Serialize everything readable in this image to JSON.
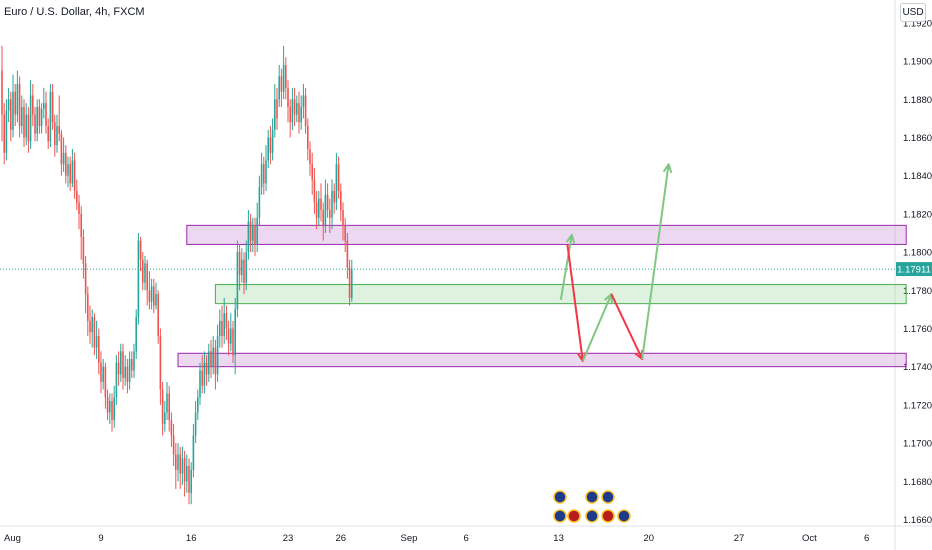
{
  "header": {
    "title": "Euro / U.S. Dollar, 4h, FXCM",
    "currency": "USD"
  },
  "chart_data": {
    "type": "candlestick",
    "title": "Euro / U.S. Dollar, 4h, FXCM",
    "instrument": "Euro / U.S. Dollar",
    "timeframe": "4h",
    "source": "FXCM",
    "currency": "USD",
    "ylim": [
      1.1644,
      1.1932
    ],
    "y_ticks": [
      "1.19200",
      "1.19000",
      "1.18800",
      "1.18600",
      "1.18400",
      "1.18200",
      "1.18000",
      "1.17800",
      "1.17600",
      "1.17400",
      "1.17200",
      "1.17000",
      "1.16800",
      "1.16600"
    ],
    "x_ticks": [
      {
        "label": "Aug",
        "pos": 0
      },
      {
        "label": "9",
        "pos": 45
      },
      {
        "label": "16",
        "pos": 86
      },
      {
        "label": "23",
        "pos": 130
      },
      {
        "label": "26",
        "pos": 154
      },
      {
        "label": "Sep",
        "pos": 185
      },
      {
        "label": "6",
        "pos": 211
      },
      {
        "label": "13",
        "pos": 253
      },
      {
        "label": "20",
        "pos": 294
      },
      {
        "label": "27",
        "pos": 335
      },
      {
        "label": "Oct",
        "pos": 367
      },
      {
        "label": "6",
        "pos": 393
      }
    ],
    "last_price": "1.17911",
    "colors": {
      "up": "#26a69a",
      "down": "#ef5350",
      "zone_purple": "#9c27b0",
      "zone_green": "#4caf50",
      "arrow_red": "#f23645",
      "arrow_green": "#81c784"
    },
    "zones": [
      {
        "type": "resistance",
        "color": "purple",
        "x_from": 84,
        "x_to": 411,
        "y_from": 1.1804,
        "y_to": 1.1814
      },
      {
        "type": "support",
        "color": "green",
        "x_from": 97,
        "x_to": 411,
        "y_from": 1.1773,
        "y_to": 1.1783
      },
      {
        "type": "support",
        "color": "purple",
        "x_from": 80,
        "x_to": 411,
        "y_from": 1.174,
        "y_to": 1.1747
      }
    ],
    "projection_red": [
      [
        257,
        1.1804
      ],
      [
        264,
        1.1743
      ],
      [
        291,
        1.1744
      ]
    ],
    "projection_green": [
      [
        254,
        1.1775
      ],
      [
        259,
        1.1809
      ]
    ],
    "projection_green_2": [
      [
        264,
        1.1743
      ],
      [
        277,
        1.1778
      ],
      [
        291,
        1.1744
      ],
      [
        303,
        1.1846
      ]
    ],
    "candles": [
      [
        1.1895,
        1.1872,
        1.1908,
        1.1858
      ],
      [
        1.1872,
        1.1852,
        1.1878,
        1.1846
      ],
      [
        1.1852,
        1.1874,
        1.188,
        1.1848
      ],
      [
        1.1874,
        1.188,
        1.1886,
        1.1868
      ],
      [
        1.188,
        1.1864,
        1.1884,
        1.1858
      ],
      [
        1.1864,
        1.1884,
        1.1893,
        1.186
      ],
      [
        1.1884,
        1.1872,
        1.1888,
        1.1866
      ],
      [
        1.1872,
        1.1888,
        1.1895,
        1.1868
      ],
      [
        1.1888,
        1.1866,
        1.1892,
        1.186
      ],
      [
        1.1866,
        1.1876,
        1.1882,
        1.1862
      ],
      [
        1.1876,
        1.186,
        1.188,
        1.1855
      ],
      [
        1.186,
        1.1872,
        1.1878,
        1.1856
      ],
      [
        1.1872,
        1.1858,
        1.1876,
        1.1852
      ],
      [
        1.1858,
        1.1882,
        1.189,
        1.1854
      ],
      [
        1.1882,
        1.1872,
        1.1888,
        1.1866
      ],
      [
        1.1872,
        1.1862,
        1.1876,
        1.1858
      ],
      [
        1.1862,
        1.1876,
        1.188,
        1.1858
      ],
      [
        1.1876,
        1.1866,
        1.188,
        1.1862
      ],
      [
        1.1866,
        1.1875,
        1.1878,
        1.1862
      ],
      [
        1.1875,
        1.1878,
        1.1886,
        1.187
      ],
      [
        1.1878,
        1.1866,
        1.1884,
        1.1862
      ],
      [
        1.1866,
        1.1858,
        1.187,
        1.1854
      ],
      [
        1.1858,
        1.1884,
        1.1888,
        1.1855
      ],
      [
        1.1884,
        1.1868,
        1.1888,
        1.1864
      ],
      [
        1.1868,
        1.1856,
        1.1872,
        1.185
      ],
      [
        1.1856,
        1.1866,
        1.1872,
        1.1852
      ],
      [
        1.1866,
        1.1862,
        1.1882,
        1.1858
      ],
      [
        1.1862,
        1.1846,
        1.1864,
        1.184
      ],
      [
        1.1846,
        1.1852,
        1.186,
        1.1842
      ],
      [
        1.1852,
        1.184,
        1.1856,
        1.1836
      ],
      [
        1.184,
        1.1846,
        1.185,
        1.1834
      ],
      [
        1.1846,
        1.1836,
        1.185,
        1.1832
      ],
      [
        1.1836,
        1.1848,
        1.1854,
        1.1834
      ],
      [
        1.1848,
        1.1832,
        1.1852,
        1.1828
      ],
      [
        1.1832,
        1.1826,
        1.1838,
        1.1822
      ],
      [
        1.1826,
        1.182,
        1.183,
        1.1812
      ],
      [
        1.182,
        1.1808,
        1.1824,
        1.1796
      ],
      [
        1.1808,
        1.1794,
        1.1812,
        1.1786
      ],
      [
        1.1794,
        1.1778,
        1.1798,
        1.1768
      ],
      [
        1.1778,
        1.1764,
        1.1782,
        1.1756
      ],
      [
        1.1764,
        1.1758,
        1.1772,
        1.1752
      ],
      [
        1.1758,
        1.1766,
        1.177,
        1.175
      ],
      [
        1.1766,
        1.175,
        1.1768,
        1.1746
      ],
      [
        1.175,
        1.1756,
        1.1764,
        1.1744
      ],
      [
        1.1756,
        1.1742,
        1.176,
        1.1736
      ],
      [
        1.1742,
        1.1732,
        1.1748,
        1.1726
      ],
      [
        1.1732,
        1.174,
        1.1744,
        1.1728
      ],
      [
        1.174,
        1.1724,
        1.1742,
        1.1718
      ],
      [
        1.1724,
        1.1716,
        1.1728,
        1.1712
      ],
      [
        1.1716,
        1.1722,
        1.1726,
        1.171
      ],
      [
        1.1722,
        1.1712,
        1.1726,
        1.1706
      ],
      [
        1.1712,
        1.1724,
        1.173,
        1.1708
      ],
      [
        1.1724,
        1.1742,
        1.1746,
        1.172
      ],
      [
        1.1742,
        1.1736,
        1.1748,
        1.173
      ],
      [
        1.1736,
        1.1748,
        1.1752,
        1.1732
      ],
      [
        1.1748,
        1.1734,
        1.1752,
        1.1728
      ],
      [
        1.1734,
        1.174,
        1.1746,
        1.173
      ],
      [
        1.174,
        1.1732,
        1.1744,
        1.1726
      ],
      [
        1.1732,
        1.1744,
        1.1748,
        1.1728
      ],
      [
        1.1744,
        1.1738,
        1.1748,
        1.1734
      ],
      [
        1.1738,
        1.1748,
        1.1752,
        1.1734
      ],
      [
        1.1748,
        1.1766,
        1.177,
        1.1744
      ],
      [
        1.1766,
        1.1806,
        1.181,
        1.1762
      ],
      [
        1.1806,
        1.1796,
        1.1808,
        1.179
      ],
      [
        1.1796,
        1.1784,
        1.18,
        1.178
      ],
      [
        1.1784,
        1.1794,
        1.1798,
        1.178
      ],
      [
        1.1794,
        1.178,
        1.1796,
        1.1772
      ],
      [
        1.178,
        1.1774,
        1.179,
        1.177
      ],
      [
        1.1774,
        1.1782,
        1.1786,
        1.177
      ],
      [
        1.1782,
        1.1772,
        1.1786,
        1.1768
      ],
      [
        1.1772,
        1.1778,
        1.1784,
        1.177
      ],
      [
        1.1778,
        1.1756,
        1.178,
        1.1752
      ],
      [
        1.1756,
        1.1728,
        1.176,
        1.172
      ],
      [
        1.1728,
        1.171,
        1.1732,
        1.1704
      ],
      [
        1.171,
        1.1716,
        1.1722,
        1.1706
      ],
      [
        1.1716,
        1.1726,
        1.1732,
        1.1712
      ],
      [
        1.1726,
        1.1712,
        1.173,
        1.1706
      ],
      [
        1.1712,
        1.1704,
        1.1716,
        1.1698
      ],
      [
        1.1704,
        1.1694,
        1.171,
        1.1688
      ],
      [
        1.1694,
        1.1686,
        1.17,
        1.1676
      ],
      [
        1.1686,
        1.1694,
        1.17,
        1.168
      ],
      [
        1.1694,
        1.1684,
        1.1698,
        1.1676
      ],
      [
        1.1684,
        1.1692,
        1.1698,
        1.1678
      ],
      [
        1.1692,
        1.168,
        1.1696,
        1.1672
      ],
      [
        1.168,
        1.1688,
        1.1694,
        1.1674
      ],
      [
        1.1688,
        1.1674,
        1.1692,
        1.1668
      ],
      [
        1.1674,
        1.1686,
        1.169,
        1.1668
      ],
      [
        1.1686,
        1.1704,
        1.171,
        1.1682
      ],
      [
        1.1704,
        1.1716,
        1.1722,
        1.17
      ],
      [
        1.1716,
        1.1724,
        1.1728,
        1.1712
      ],
      [
        1.1724,
        1.1738,
        1.1742,
        1.172
      ],
      [
        1.1738,
        1.173,
        1.1746,
        1.1726
      ],
      [
        1.173,
        1.1742,
        1.1748,
        1.1726
      ],
      [
        1.1742,
        1.1736,
        1.1746,
        1.173
      ],
      [
        1.1736,
        1.1748,
        1.1752,
        1.1732
      ],
      [
        1.1748,
        1.174,
        1.1754,
        1.1734
      ],
      [
        1.174,
        1.175,
        1.1756,
        1.1736
      ],
      [
        1.175,
        1.1736,
        1.1754,
        1.1728
      ],
      [
        1.1736,
        1.1756,
        1.1762,
        1.1732
      ],
      [
        1.1756,
        1.1764,
        1.177,
        1.175
      ],
      [
        1.1764,
        1.1756,
        1.1772,
        1.175
      ],
      [
        1.1756,
        1.1768,
        1.1776,
        1.1752
      ],
      [
        1.1768,
        1.176,
        1.1772,
        1.1754
      ],
      [
        1.176,
        1.1752,
        1.1764,
        1.1746
      ],
      [
        1.1752,
        1.176,
        1.1768,
        1.1748
      ],
      [
        1.176,
        1.1746,
        1.1764,
        1.1742
      ],
      [
        1.1746,
        1.177,
        1.1776,
        1.1736
      ],
      [
        1.177,
        1.18,
        1.1806,
        1.1766
      ],
      [
        1.18,
        1.1788,
        1.1804,
        1.178
      ],
      [
        1.1788,
        1.1796,
        1.1802,
        1.1784
      ],
      [
        1.1796,
        1.1784,
        1.18,
        1.1778
      ],
      [
        1.1784,
        1.18,
        1.1806,
        1.178
      ],
      [
        1.18,
        1.1816,
        1.1822,
        1.1796
      ],
      [
        1.1816,
        1.1806,
        1.182,
        1.18
      ],
      [
        1.1806,
        1.1814,
        1.1818,
        1.18
      ],
      [
        1.1814,
        1.1804,
        1.1818,
        1.1798
      ],
      [
        1.1804,
        1.1818,
        1.1826,
        1.18
      ],
      [
        1.1818,
        1.1834,
        1.184,
        1.1814
      ],
      [
        1.1834,
        1.1846,
        1.1852,
        1.183
      ],
      [
        1.1846,
        1.1836,
        1.185,
        1.183
      ],
      [
        1.1836,
        1.1848,
        1.1856,
        1.1832
      ],
      [
        1.1848,
        1.186,
        1.1864,
        1.1844
      ],
      [
        1.186,
        1.1852,
        1.1866,
        1.1846
      ],
      [
        1.1852,
        1.1864,
        1.187,
        1.1848
      ],
      [
        1.1864,
        1.188,
        1.1888,
        1.186
      ],
      [
        1.188,
        1.187,
        1.1886,
        1.1864
      ],
      [
        1.188,
        1.1892,
        1.1898,
        1.1876
      ],
      [
        1.1892,
        1.1884,
        1.1896,
        1.1876
      ],
      [
        1.1884,
        1.1898,
        1.1908,
        1.188
      ],
      [
        1.1898,
        1.1886,
        1.1902,
        1.188
      ],
      [
        1.1886,
        1.1876,
        1.189,
        1.1868
      ],
      [
        1.1876,
        1.1868,
        1.188,
        1.186
      ],
      [
        1.1868,
        1.188,
        1.1886,
        1.1864
      ],
      [
        1.188,
        1.1872,
        1.1886,
        1.1866
      ],
      [
        1.1872,
        1.1878,
        1.1882,
        1.1868
      ],
      [
        1.1878,
        1.1868,
        1.1884,
        1.1862
      ],
      [
        1.1868,
        1.1876,
        1.1882,
        1.1864
      ],
      [
        1.1876,
        1.1882,
        1.1888,
        1.187
      ],
      [
        1.1882,
        1.1866,
        1.1886,
        1.1862
      ],
      [
        1.1866,
        1.1854,
        1.187,
        1.1848
      ],
      [
        1.1854,
        1.1846,
        1.1858,
        1.184
      ],
      [
        1.1846,
        1.1838,
        1.1852,
        1.183
      ],
      [
        1.1838,
        1.1826,
        1.1844,
        1.182
      ],
      [
        1.1826,
        1.1818,
        1.1832,
        1.1812
      ],
      [
        1.1818,
        1.1828,
        1.1832,
        1.1814
      ],
      [
        1.1828,
        1.1822,
        1.1836,
        1.1816
      ],
      [
        1.1822,
        1.1814,
        1.1826,
        1.1806
      ],
      [
        1.1814,
        1.183,
        1.1838,
        1.181
      ],
      [
        1.183,
        1.1822,
        1.1836,
        1.1818
      ],
      [
        1.1822,
        1.1818,
        1.1828,
        1.181
      ],
      [
        1.1818,
        1.1832,
        1.1838,
        1.1812
      ],
      [
        1.1832,
        1.1826,
        1.1836,
        1.182
      ],
      [
        1.1826,
        1.1846,
        1.1852,
        1.1822
      ],
      [
        1.1846,
        1.1832,
        1.185,
        1.1828
      ],
      [
        1.1832,
        1.1822,
        1.1836,
        1.1816
      ],
      [
        1.1822,
        1.1814,
        1.1826,
        1.1806
      ],
      [
        1.1814,
        1.1806,
        1.1818,
        1.18
      ],
      [
        1.1806,
        1.1792,
        1.181,
        1.1786
      ],
      [
        1.1792,
        1.1776,
        1.1796,
        1.1772
      ],
      [
        1.1776,
        1.1791,
        1.1796,
        1.1774
      ]
    ]
  }
}
